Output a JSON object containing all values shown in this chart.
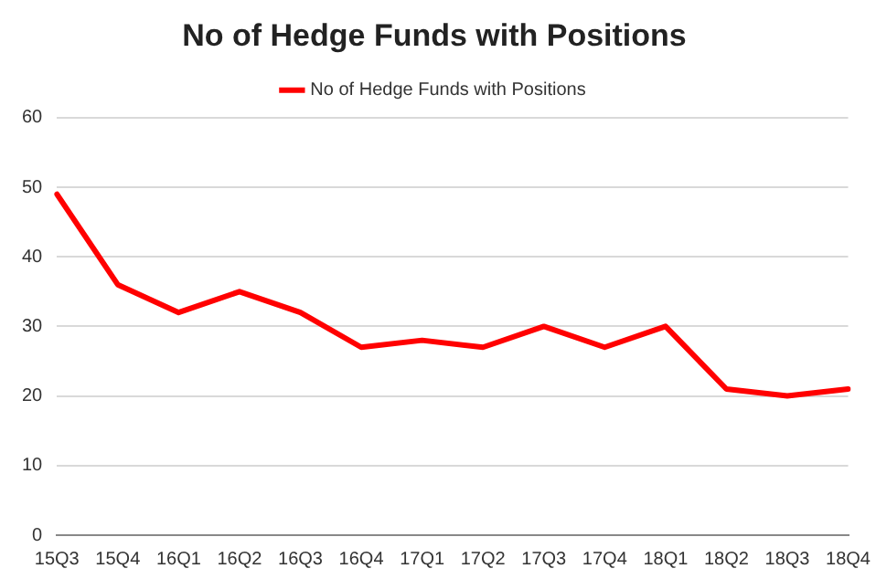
{
  "chart_data": {
    "type": "line",
    "title": "No of Hedge Funds with Positions",
    "categories": [
      "15Q3",
      "15Q4",
      "16Q1",
      "16Q2",
      "16Q3",
      "16Q4",
      "17Q1",
      "17Q2",
      "17Q3",
      "17Q4",
      "18Q1",
      "18Q2",
      "18Q3",
      "18Q4"
    ],
    "series": [
      {
        "name": "No of Hedge Funds with Positions",
        "color": "#ff0000",
        "values": [
          49,
          36,
          32,
          35,
          32,
          27,
          28,
          27,
          30,
          27,
          30,
          21,
          20,
          21
        ]
      }
    ],
    "ylim": [
      0,
      60
    ],
    "yticks": [
      0,
      10,
      20,
      30,
      40,
      50,
      60
    ],
    "grid": "y",
    "legend": "top",
    "marker": "none",
    "line_style": "solid"
  }
}
